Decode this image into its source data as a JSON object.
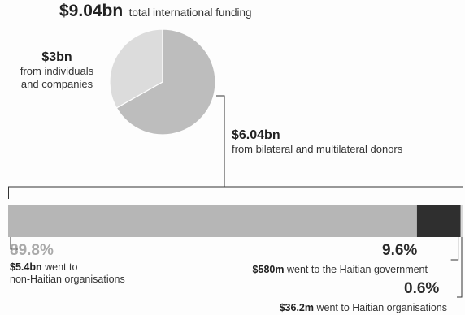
{
  "chart_data": {
    "type": "bar",
    "headline": {
      "value": "$9.04bn",
      "text": "total international funding"
    },
    "pie": {
      "slices": [
        {
          "value": 3.0,
          "color": "#dcdcdc",
          "label_value": "$3bn",
          "label_lines": [
            "from individuals",
            "and companies"
          ]
        },
        {
          "value": 6.04,
          "color": "#bdbdbd",
          "label_value": "$6.04bn",
          "label_lines": [
            "from bilateral and multilateral donors"
          ]
        }
      ]
    },
    "bar": {
      "segments": [
        {
          "pct": 89.8,
          "pct_label": "89.8%",
          "amount": "$5.4bn",
          "text": "went to",
          "text2": "non-Haitian organisations",
          "color": "#b6b6b6"
        },
        {
          "pct": 9.6,
          "pct_label": "9.6%",
          "amount": "$580m",
          "text": "went to the Haitian government",
          "color": "#2f2f2f"
        },
        {
          "pct": 0.6,
          "pct_label": "0.6%",
          "amount": "$36.2m",
          "text": "went to Haitian organisations",
          "color": "#dadada"
        }
      ]
    }
  }
}
